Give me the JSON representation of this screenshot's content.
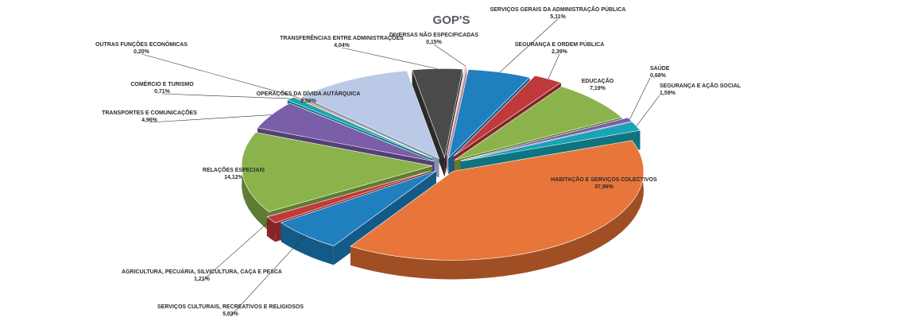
{
  "chart_data": {
    "type": "pie",
    "title": "GOP'S",
    "slices": [
      {
        "label": "SERVIÇOS GERAIS DA ADMINISTRAÇÃO PÚBLICA",
        "percent": "5,11%",
        "value": 5.11,
        "color": "#1f7fbf",
        "side": "#145a88"
      },
      {
        "label": "SEGURANÇA E ORDEM PÚBLICA",
        "percent": "2,39%",
        "value": 2.39,
        "color": "#c0393b",
        "side": "#862628"
      },
      {
        "label": "EDUCAÇÃO",
        "percent": "7,19%",
        "value": 7.19,
        "color": "#8ab34b",
        "side": "#5f7c32"
      },
      {
        "label": "SAÚDE",
        "percent": "0,68%",
        "value": 0.68,
        "color": "#7a5ea8",
        "side": "#553f76"
      },
      {
        "label": "SEGURANÇA E AÇÃO SOCIAL",
        "percent": "1,59%",
        "value": 1.59,
        "color": "#1aa3b5",
        "side": "#107380"
      },
      {
        "label": "HABITAÇÃO E SERVIÇOS COLECTIVOS",
        "percent": "37,96%",
        "value": 37.96,
        "color": "#e8763a",
        "side": "#a04f24"
      },
      {
        "label": "SERVIÇOS CULTURAIS, RECREATIVOS E RELIGIOSOS",
        "percent": "5,83%",
        "value": 5.83,
        "color": "#1f7fbf",
        "side": "#145a88"
      },
      {
        "label": "AGRICULTURA, PECUÁRIA, SILVICULTURA, CAÇA E PESCA",
        "percent": "1,21%",
        "value": 1.21,
        "color": "#c0393b",
        "side": "#862628"
      },
      {
        "label": "RELAÇÕES ESPECIAIS",
        "percent": "14,12%",
        "value": 14.12,
        "color": "#8ab34b",
        "side": "#5f7c32"
      },
      {
        "label": "TRANSPORTES E COMUNICAÇÕES",
        "percent": "4,96%",
        "value": 4.96,
        "color": "#7a5ea8",
        "side": "#553f76"
      },
      {
        "label": "COMÉRCIO E TURISMO",
        "percent": "0,71%",
        "value": 0.71,
        "color": "#1aa3b5",
        "side": "#107380"
      },
      {
        "label": "OUTRAS FUNÇÕES ECONÓMICAS",
        "percent": "0,20%",
        "value": 0.2,
        "color": "#e8763a",
        "side": "#a04f24"
      },
      {
        "label": "OPERAÇÕES DA DÍVIDA AUTÁRQUICA",
        "percent": "9,59%",
        "value": 9.59,
        "color": "#b9c9e6",
        "side": "#8393af"
      },
      {
        "label": "TRANSFERÊNCIAS ENTRE ADMINISTRAÇÕES",
        "percent": "4,04%",
        "value": 4.04,
        "color": "#4a4a4a",
        "side": "#2a2a2a"
      },
      {
        "label": "DIVERSAS NÃO ESPECIFICADAS",
        "percent": "0,15%",
        "value": 0.15,
        "color": "#f1bfc9",
        "side": "#b78b94"
      }
    ]
  }
}
